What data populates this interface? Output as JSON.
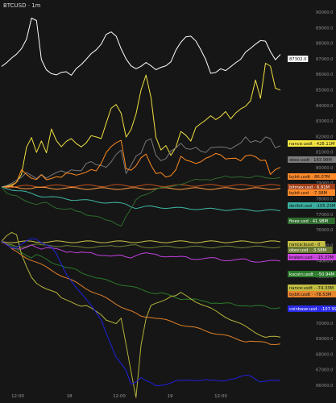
{
  "chart_data": {
    "type": "line",
    "title": "BTCUSD · 1m",
    "xticks": [
      "12:00",
      "18",
      "12:00",
      "19",
      "12:00"
    ],
    "price_scale": {
      "ticks": [
        "90000.0",
        "89000.0",
        "88000.0",
        "87000.0",
        "86000.0",
        "85000.0",
        "84000.0",
        "83000.0",
        "82000.0",
        "81000.0",
        "80000.0",
        "79000.0",
        "78000.0",
        "77000.0",
        "76000.0",
        "75000.0",
        "74000.0",
        "73000.0",
        "72000.0",
        "71000.0",
        "70000.0",
        "69000.0",
        "68000.0",
        "67000.0",
        "66000.0"
      ],
      "last_price": "87302.0"
    },
    "series": [
      {
        "name": "BTCUSD",
        "color": "#ffffff",
        "badge": "87302.0",
        "badge_bg": "#ffffff",
        "badge_fg": "#111111",
        "values": [
          86500,
          86800,
          87100,
          87300,
          87600,
          88200,
          89600,
          89500,
          87000,
          86300,
          86000,
          85900,
          86100,
          86200,
          86000,
          86400,
          86600,
          86900,
          87300,
          87600,
          88000,
          88600,
          88700,
          88400,
          87600,
          87000,
          86600,
          86400,
          86500,
          86700,
          86500,
          86300,
          86500,
          86600,
          86800,
          87500,
          88000,
          88400,
          88500,
          88200,
          87600,
          86900,
          86000,
          86100,
          86400,
          86300,
          86500,
          86700,
          86900,
          87400,
          87700,
          88000,
          88200,
          88100,
          87400,
          86900,
          87300
        ]
      },
      {
        "name": "binance:usdt",
        "color": "#f0e040",
        "badge": "nance:usdt · 428.11M",
        "badge_bg": "#f5e642",
        "badge_fg": "#111111",
        "values": [
          0,
          0,
          5,
          20,
          60,
          180,
          220,
          150,
          200,
          150,
          260,
          210,
          180,
          200,
          210,
          190,
          180,
          200,
          230,
          220,
          210,
          280,
          350,
          370,
          330,
          220,
          250,
          320,
          430,
          500,
          400,
          220,
          160,
          180,
          140,
          180,
          250,
          230,
          200,
          260,
          280,
          300,
          320,
          300,
          310,
          330,
          300,
          330,
          350,
          360,
          380,
          470,
          390,
          550,
          540,
          440,
          428
        ]
      },
      {
        "name": "okex:usdt",
        "color": "#777777",
        "badge": "okex:usdt · 183.98M",
        "badge_bg": "#7c7c7c",
        "badge_fg": "#111111",
        "values": [
          0,
          10,
          20,
          30,
          40,
          60,
          50,
          40,
          60,
          40,
          50,
          60,
          70,
          65,
          80,
          75,
          70,
          100,
          110,
          100,
          100,
          90,
          110,
          140,
          160,
          60,
          100,
          140,
          150,
          200,
          210,
          140,
          120,
          130,
          160,
          170,
          190,
          170,
          170,
          180,
          160,
          150,
          170,
          175,
          180,
          180,
          170,
          180,
          190,
          220,
          200,
          210,
          200,
          220,
          210,
          170,
          184
        ]
      },
      {
        "name": "bybit:usdt",
        "color": "#ff8a20",
        "badge": "bybit:usdt · 86.07M",
        "badge_bg": "#ff8a2a",
        "badge_fg": "#111111",
        "values": [
          0,
          -5,
          0,
          20,
          80,
          60,
          40,
          30,
          50,
          30,
          40,
          50,
          45,
          60,
          55,
          50,
          60,
          70,
          80,
          70,
          100,
          150,
          180,
          200,
          210,
          80,
          70,
          90,
          130,
          150,
          100,
          60,
          60,
          40,
          50,
          80,
          140,
          120,
          110,
          100,
          110,
          130,
          140,
          150,
          140,
          120,
          125,
          130,
          120,
          140,
          140,
          130,
          115,
          120,
          60,
          80,
          86
        ]
      },
      {
        "name": "bitmex:usd",
        "color": "#c0521e",
        "badge": "bitmex:usd · 6.91M",
        "badge_bg": "#a0401a",
        "badge_fg": "#ffffff",
        "values": [
          0,
          0,
          2,
          3,
          3,
          4,
          4,
          3,
          4,
          5,
          5,
          5,
          6,
          6,
          6,
          5,
          5,
          6,
          6,
          6,
          6,
          6,
          7,
          7,
          7,
          6,
          6,
          6,
          6,
          7,
          7,
          6,
          6,
          6,
          6,
          6,
          6,
          7,
          7,
          7,
          7,
          7,
          7,
          7,
          7,
          7,
          7,
          7,
          7,
          7,
          7,
          7,
          7,
          7,
          7,
          7,
          7
        ]
      },
      {
        "name": "bybit:usd",
        "color": "#ff9a40",
        "badge": "bybit:usd · -7.38M",
        "badge_bg": "#ff8a2a",
        "badge_fg": "#111111",
        "values": [
          0,
          -1,
          -2,
          -3,
          -4,
          -4,
          -5,
          -4,
          -5,
          -5,
          -5,
          -6,
          -6,
          -6,
          -6,
          -6,
          -6,
          -7,
          -7,
          -7,
          -7,
          -7,
          -7,
          -7,
          -7,
          -7,
          -7,
          -7,
          -7,
          -7,
          -7,
          -7,
          -7,
          -7,
          -7,
          -7,
          -7,
          -7,
          -7,
          -7,
          -7,
          -7,
          -7,
          -7,
          -7,
          -7,
          -7,
          -7,
          -7,
          -7,
          -7,
          -7,
          -7,
          -7,
          -7,
          -7,
          -7
        ]
      },
      {
        "name": "deribit:usd",
        "color": "#3fb7a5",
        "badge": "deribit:usd · -105.23M",
        "badge_bg": "#3aaea0",
        "badge_fg": "#111111",
        "values": [
          0,
          -5,
          -10,
          -15,
          -20,
          -25,
          -30,
          -35,
          -40,
          -42,
          -45,
          -48,
          -50,
          -52,
          -55,
          -56,
          -58,
          -60,
          -62,
          -64,
          -66,
          -68,
          -70,
          -72,
          -74,
          -76,
          -85,
          -92,
          -90,
          -88,
          -88,
          -89,
          -90,
          -91,
          -92,
          -93,
          -94,
          -95,
          -96,
          -96,
          -97,
          -98,
          -98,
          -99,
          -99,
          -100,
          -100,
          -101,
          -101,
          -102,
          -102,
          -103,
          -103,
          -104,
          -104,
          -105,
          -105
        ]
      },
      {
        "name": "finex:usd",
        "color": "#2e6b2e",
        "badge": "finex:usd · 41.98M",
        "badge_bg": "#2e6b2e",
        "badge_fg": "#ffffff",
        "values": [
          0,
          -30,
          -40,
          -40,
          -50,
          -60,
          -70,
          -80,
          -75,
          -70,
          -80,
          -90,
          -95,
          -100,
          -100,
          -110,
          -110,
          -120,
          -125,
          -130,
          -140,
          -150,
          -150,
          -160,
          -170,
          -130,
          -100,
          -60,
          -40,
          -30,
          -20,
          -10,
          -5,
          -5,
          0,
          10,
          15,
          20,
          25,
          30,
          30,
          35,
          35,
          40,
          40,
          45,
          40,
          45,
          50,
          45,
          40,
          45,
          45,
          42,
          42,
          42,
          42
        ]
      }
    ],
    "cvd_series": [
      {
        "name": "binance:usd",
        "color": "#c9c248",
        "badge": "nance:busd · 0",
        "badge_bg": "#c5bf45",
        "badge_fg": "#111111",
        "values": [
          0,
          0,
          0,
          0,
          0,
          0,
          0,
          0,
          0,
          0,
          0,
          0,
          0,
          0,
          0,
          0,
          0,
          0,
          0,
          0,
          0,
          0,
          0,
          0,
          0,
          0,
          0,
          0,
          0,
          0,
          0,
          0,
          0,
          0,
          0,
          0,
          0,
          0,
          0,
          0,
          0,
          0,
          0,
          0,
          0,
          0,
          0,
          0,
          0,
          0,
          0,
          0,
          0,
          0,
          0,
          0,
          0
        ]
      },
      {
        "name": "okex:usd",
        "color": "#6d7f3a",
        "badge": "okex:usd · -3.58M",
        "badge_bg": "#6b7a32",
        "badge_fg": "#ffffff",
        "values": [
          0,
          -2,
          -3,
          -4,
          -4,
          -3,
          -2,
          -2,
          -3,
          -3,
          -3,
          -3,
          -3,
          -3,
          -4,
          -4,
          -4,
          -4,
          -4,
          -4,
          -4,
          -4,
          -3,
          -3,
          -3,
          -3,
          -3,
          -3,
          -4,
          -4,
          -4,
          -4,
          -4,
          -4,
          -4,
          -4,
          -4,
          -4,
          -4,
          -4,
          -4,
          -4,
          -4,
          -4,
          -4,
          -4,
          -4,
          -4,
          -4,
          -4,
          -4,
          -4,
          -4,
          -4,
          -4,
          -4,
          -4
        ]
      },
      {
        "name": "kraken:usd",
        "color": "#c040e0",
        "badge": "kraken:usd · -15.37M",
        "badge_bg": "#cc48e0",
        "badge_fg": "#111111",
        "values": [
          0,
          -2,
          -4,
          -5,
          -6,
          -5,
          -3,
          -4,
          -5,
          -4,
          -5,
          -6,
          -7,
          -8,
          -7,
          -8,
          -8,
          -9,
          -9,
          -10,
          -10,
          -10,
          -11,
          -11,
          -11,
          -12,
          -12,
          -10,
          -9,
          -9,
          -10,
          -10,
          -11,
          -11,
          -11,
          -12,
          -12,
          -12,
          -13,
          -13,
          -13,
          -13,
          -13,
          -13,
          -14,
          -14,
          -14,
          -14,
          -14,
          -14,
          -15,
          -15,
          -15,
          -15,
          -15,
          -15,
          -15
        ]
      },
      {
        "name": "kucoin:usdt",
        "color": "#2a7a2a",
        "badge": "kucoin:usdt · -50.94M",
        "badge_bg": "#2a7a2a",
        "badge_fg": "#ffffff",
        "values": [
          0,
          -2,
          -4,
          -6,
          -8,
          -10,
          -12,
          -10,
          -12,
          -14,
          -16,
          -17,
          -18,
          -20,
          -21,
          -22,
          -24,
          -25,
          -26,
          -28,
          -29,
          -30,
          -31,
          -32,
          -33,
          -34,
          -35,
          -36,
          -37,
          -38,
          -39,
          -40,
          -40,
          -41,
          -42,
          -43,
          -44,
          -44,
          -45,
          -45,
          -46,
          -46,
          -47,
          -47,
          -48,
          -48,
          -48,
          -49,
          -49,
          -49,
          -50,
          -50,
          -50,
          -50,
          -51,
          -51,
          -51
        ]
      },
      {
        "name": "binance:usdt (spot)",
        "color": "#b5b23a",
        "badge": "nance:usdt · -74.33M",
        "badge_bg": "#c0bd42",
        "badge_fg": "#111111",
        "values": [
          0,
          5,
          8,
          6,
          -10,
          -20,
          -28,
          -32,
          -34,
          -36,
          -38,
          -40,
          -44,
          -45,
          -46,
          -48,
          -50,
          -50,
          -52,
          -54,
          -56,
          -60,
          -62,
          -64,
          -60,
          -80,
          -100,
          -120,
          -80,
          -60,
          -50,
          -48,
          -46,
          -44,
          -42,
          -42,
          -40,
          -42,
          -44,
          -46,
          -48,
          -50,
          -52,
          -54,
          -56,
          -58,
          -60,
          -62,
          -64,
          -66,
          -68,
          -70,
          -72,
          -74,
          -74,
          -74,
          -74
        ]
      },
      {
        "name": "bybit:usdt (spot)",
        "color": "#e0802a",
        "badge": "bybit:usdt · -78.53M",
        "badge_bg": "#e8862e",
        "badge_fg": "#111111",
        "values": [
          0,
          -2,
          -6,
          -8,
          -10,
          -12,
          -14,
          -16,
          -18,
          -20,
          -22,
          -24,
          -26,
          -28,
          -30,
          -32,
          -34,
          -36,
          -38,
          -40,
          -42,
          -44,
          -46,
          -48,
          -50,
          -52,
          -54,
          -56,
          -58,
          -58,
          -58,
          -59,
          -60,
          -61,
          -62,
          -63,
          -64,
          -65,
          -66,
          -67,
          -68,
          -69,
          -70,
          -71,
          -72,
          -73,
          -74,
          -75,
          -76,
          -77,
          -77,
          -78,
          -78,
          -78,
          -79,
          -79,
          -79
        ]
      },
      {
        "name": "coinbase:usd",
        "color": "#2020e0",
        "badge": "coinbase:usd · -107.99M",
        "badge_bg": "#2a2ae6",
        "badge_fg": "#ffffff",
        "values": [
          0,
          -2,
          -4,
          -4,
          -2,
          0,
          2,
          2,
          0,
          -2,
          -4,
          -10,
          -18,
          -25,
          -30,
          -35,
          -40,
          -45,
          -50,
          -55,
          -60,
          -70,
          -80,
          -90,
          -95,
          -100,
          -110,
          -108,
          -105,
          -108,
          -110,
          -112,
          -111,
          -110,
          -109,
          -108,
          -108,
          -108,
          -107,
          -107,
          -107,
          -107,
          -108,
          -108,
          -108,
          -107,
          -106,
          -106,
          -105,
          -104,
          -104,
          -106,
          -108,
          -108,
          -108,
          -108,
          -108
        ]
      }
    ]
  }
}
